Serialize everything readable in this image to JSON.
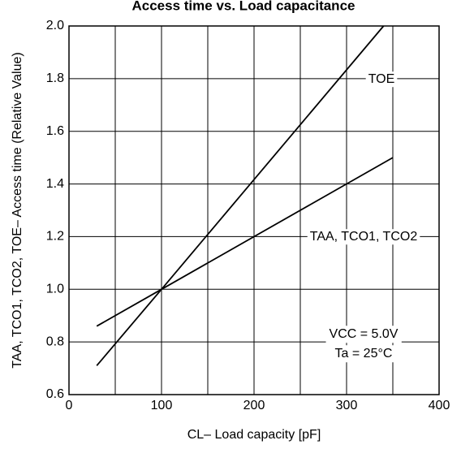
{
  "chart_data": {
    "type": "line",
    "title": "Access time vs. Load capacitance",
    "x_label": "CL– Load capacity [pF]",
    "y_label": "TAA, TCO1, TCO2, TOE– Access time (Relative Value)",
    "series": [
      {
        "name": "TOE",
        "color": "#000000",
        "x": [
          30,
          100,
          340
        ],
        "values": [
          0.71,
          1.0,
          2.0
        ]
      },
      {
        "name": "TAA, TCO1, TCO2",
        "color": "#000000",
        "x": [
          30,
          100,
          350
        ],
        "values": [
          0.86,
          1.0,
          1.5
        ]
      }
    ],
    "annotations": [
      "VCC = 5.0V",
      "Ta = 25°C"
    ],
    "xlim": [
      0,
      400
    ],
    "xticks": [
      0,
      100,
      200,
      300,
      400
    ],
    "x_minor_grid": [
      50,
      150,
      250,
      350
    ],
    "ylim": [
      0.6,
      2.0
    ],
    "yticks": [
      {
        "value": 0.6,
        "label": "0.6"
      },
      {
        "value": 0.8,
        "label": "0.8"
      },
      {
        "value": 1.0,
        "label": "1.0"
      },
      {
        "value": 1.2,
        "label": "1.2"
      },
      {
        "value": 1.4,
        "label": "1.4"
      },
      {
        "value": 1.6,
        "label": "1.6"
      },
      {
        "value": 1.8,
        "label": "1.8"
      },
      {
        "value": 2.0,
        "label": "2.0"
      }
    ],
    "grid": true
  }
}
